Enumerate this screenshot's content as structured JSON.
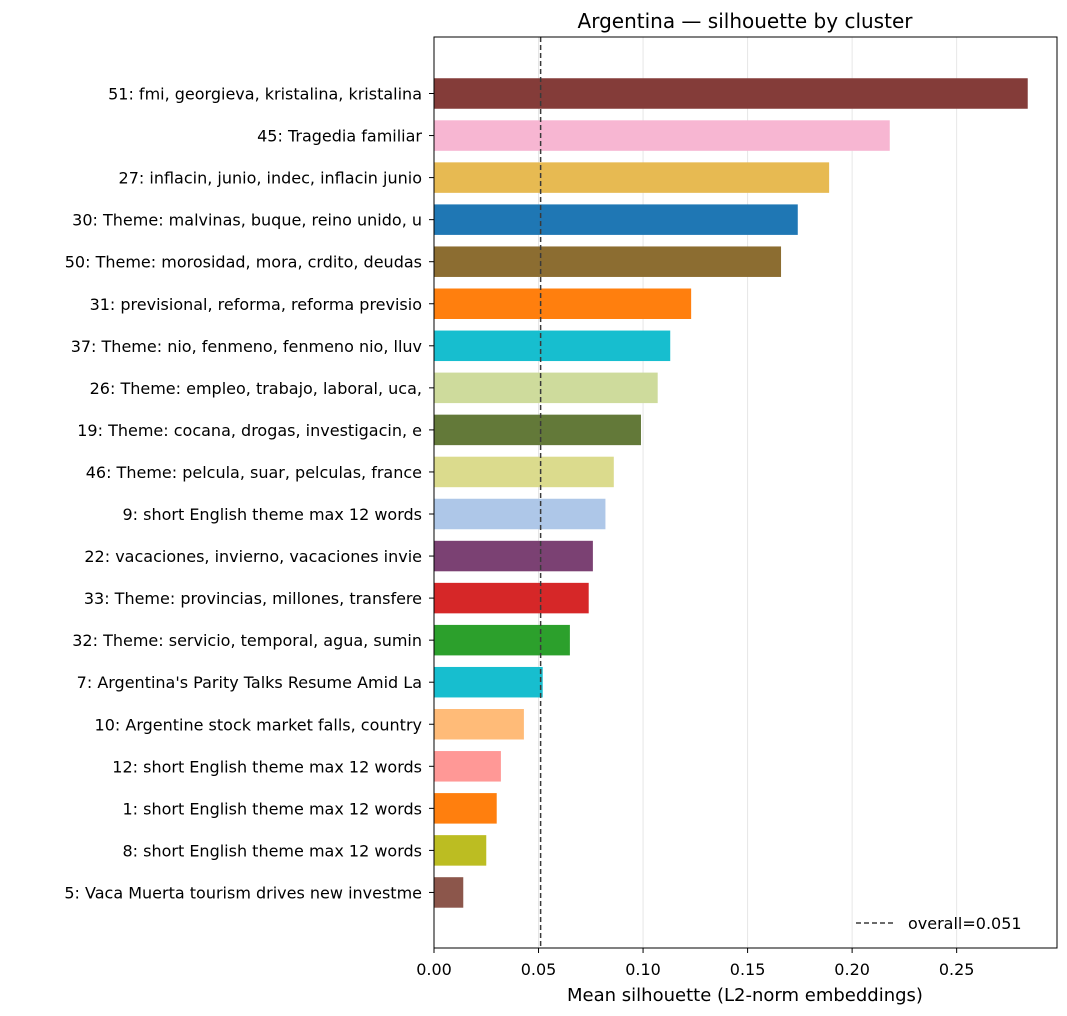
{
  "chart_data": {
    "type": "bar",
    "orientation": "horizontal",
    "title": "Argentina — silhouette by cluster",
    "xlabel": "Mean silhouette (L2-norm embeddings)",
    "ylabel": "",
    "xlim": [
      0.0,
      0.298
    ],
    "xticks": [
      0.0,
      0.05,
      0.1,
      0.15,
      0.2,
      0.25
    ],
    "xtick_labels": [
      "0.00",
      "0.05",
      "0.10",
      "0.15",
      "0.20",
      "0.25"
    ],
    "grid": "vertical, light",
    "reference_line": {
      "value": 0.051,
      "style": "dashed",
      "label": "overall=0.051"
    },
    "legend_position": "lower-right",
    "categories": [
      "51: fmi, georgieva, kristalina, kristalina",
      "45: Tragedia familiar",
      "27: inflacin, junio, indec, inflacin junio",
      "30: Theme: malvinas, buque, reino unido, u",
      "50: Theme: morosidad, mora, crdito, deudas",
      "31: previsional, reforma, reforma previsio",
      "37: Theme: nio, fenmeno, fenmeno nio, lluv",
      "26: Theme: empleo, trabajo, laboral, uca, ",
      "19: Theme: cocana, drogas, investigacin, e",
      "46: Theme: pelcula, suar, pelculas, france",
      "9: short English theme max 12 words",
      "22: vacaciones, invierno, vacaciones invie",
      "33: Theme: provincias, millones, transfere",
      "32: Theme: servicio, temporal, agua, sumin",
      "7: Argentina's Parity Talks Resume Amid La",
      "10: Argentine stock market falls, country ",
      "12: short English theme max 12 words",
      "1: short English theme max 12 words",
      "8: short English theme max 12 words",
      "5: Vaca Muerta tourism drives new investme"
    ],
    "values": [
      0.284,
      0.218,
      0.189,
      0.174,
      0.166,
      0.123,
      0.113,
      0.107,
      0.099,
      0.086,
      0.082,
      0.076,
      0.074,
      0.065,
      0.052,
      0.043,
      0.032,
      0.03,
      0.025,
      0.014
    ],
    "colors": [
      "#843c39",
      "#f7b6d2",
      "#e7ba52",
      "#1f77b4",
      "#8c6d31",
      "#ff7f0e",
      "#17becf",
      "#cedb9c",
      "#637939",
      "#dbdb8d",
      "#aec7e8",
      "#7b4173",
      "#d62728",
      "#2ca02c",
      "#17becf",
      "#ffbb78",
      "#ff9896",
      "#ff7f0e",
      "#bcbd22",
      "#8c564b"
    ]
  }
}
